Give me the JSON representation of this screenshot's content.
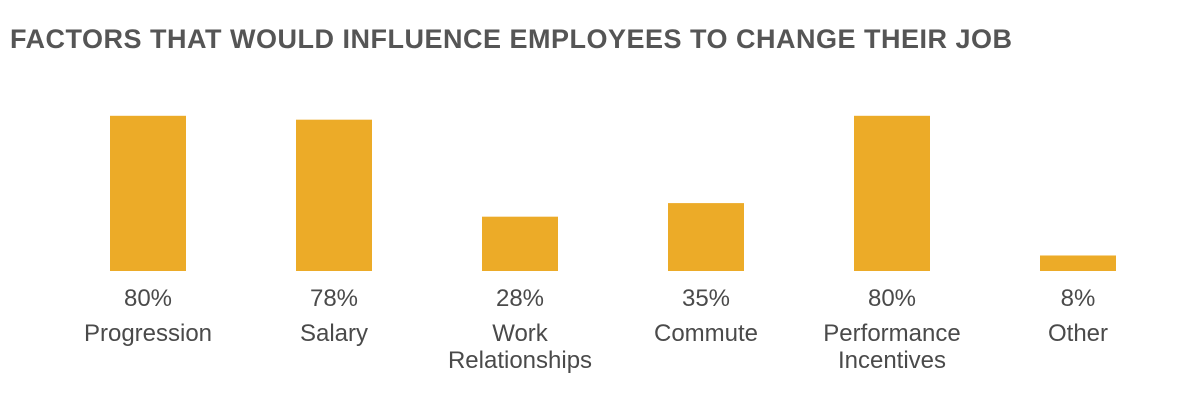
{
  "chart_data": {
    "type": "bar",
    "title": "FACTORS THAT WOULD INFLUENCE EMPLOYEES TO CHANGE THEIR JOB",
    "categories": [
      "Progression",
      "Salary",
      "Work Relationships",
      "Commute",
      "Performance Incentives",
      "Other"
    ],
    "values": [
      80,
      78,
      28,
      35,
      80,
      8
    ],
    "value_labels": [
      "80%",
      "78%",
      "28%",
      "35%",
      "80%",
      "8%"
    ],
    "color": "#ecab28"
  }
}
